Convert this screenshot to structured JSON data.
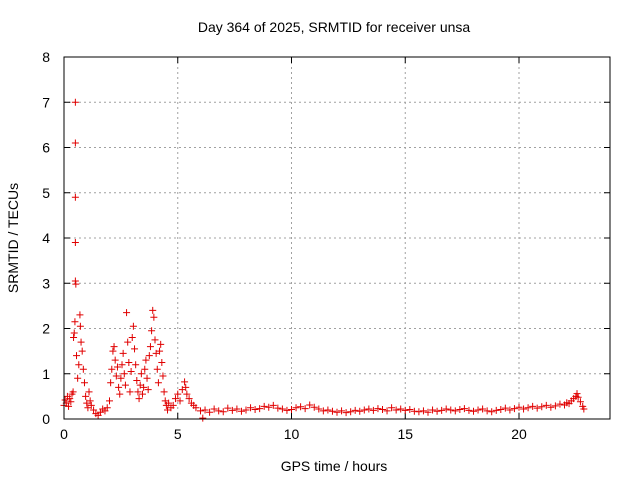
{
  "chart_data": {
    "type": "scatter",
    "title": "Day 364 of 2025, SRMTID for receiver unsa",
    "xlabel": "GPS time / hours",
    "ylabel": "SRMTID / TECUs",
    "xlim": [
      0,
      24
    ],
    "ylim": [
      0,
      8
    ],
    "xticks": [
      0,
      5,
      10,
      15,
      20
    ],
    "yticks": [
      0,
      1,
      2,
      3,
      4,
      5,
      6,
      7,
      8
    ],
    "grid": true,
    "marker": "+",
    "color": "#e00000",
    "series": [
      {
        "name": "SRMTID",
        "points": [
          [
            0.0,
            0.3
          ],
          [
            0.05,
            0.42
          ],
          [
            0.1,
            0.35
          ],
          [
            0.15,
            0.5
          ],
          [
            0.2,
            0.28
          ],
          [
            0.25,
            0.45
          ],
          [
            0.3,
            0.38
          ],
          [
            0.35,
            0.55
          ],
          [
            0.4,
            0.6
          ],
          [
            0.42,
            1.8
          ],
          [
            0.45,
            1.9
          ],
          [
            0.48,
            2.15
          ],
          [
            0.5,
            7.0
          ],
          [
            0.5,
            6.1
          ],
          [
            0.5,
            4.9
          ],
          [
            0.5,
            3.9
          ],
          [
            0.5,
            3.05
          ],
          [
            0.52,
            2.98
          ],
          [
            0.55,
            1.4
          ],
          [
            0.6,
            0.9
          ],
          [
            0.65,
            1.2
          ],
          [
            0.7,
            2.3
          ],
          [
            0.72,
            2.05
          ],
          [
            0.75,
            1.7
          ],
          [
            0.8,
            1.5
          ],
          [
            0.85,
            1.1
          ],
          [
            0.9,
            0.8
          ],
          [
            0.95,
            0.5
          ],
          [
            1.0,
            0.35
          ],
          [
            1.05,
            0.25
          ],
          [
            1.1,
            0.6
          ],
          [
            1.15,
            0.4
          ],
          [
            1.2,
            0.3
          ],
          [
            1.3,
            0.2
          ],
          [
            1.4,
            0.12
          ],
          [
            1.5,
            0.08
          ],
          [
            1.6,
            0.15
          ],
          [
            1.7,
            0.22
          ],
          [
            1.8,
            0.18
          ],
          [
            1.9,
            0.25
          ],
          [
            2.0,
            0.4
          ],
          [
            2.05,
            0.8
          ],
          [
            2.1,
            1.1
          ],
          [
            2.15,
            1.5
          ],
          [
            2.2,
            1.6
          ],
          [
            2.25,
            1.3
          ],
          [
            2.3,
            0.95
          ],
          [
            2.35,
            1.15
          ],
          [
            2.4,
            0.7
          ],
          [
            2.45,
            0.55
          ],
          [
            2.5,
            0.9
          ],
          [
            2.55,
            1.2
          ],
          [
            2.6,
            1.45
          ],
          [
            2.65,
            1.0
          ],
          [
            2.7,
            0.75
          ],
          [
            2.75,
            2.35
          ],
          [
            2.8,
            1.7
          ],
          [
            2.85,
            1.25
          ],
          [
            2.9,
            0.6
          ],
          [
            2.95,
            1.05
          ],
          [
            3.0,
            1.8
          ],
          [
            3.05,
            2.05
          ],
          [
            3.1,
            1.55
          ],
          [
            3.15,
            1.2
          ],
          [
            3.2,
            0.85
          ],
          [
            3.25,
            0.6
          ],
          [
            3.3,
            0.45
          ],
          [
            3.35,
            0.75
          ],
          [
            3.4,
            1.0
          ],
          [
            3.45,
            0.55
          ],
          [
            3.5,
            0.7
          ],
          [
            3.55,
            1.1
          ],
          [
            3.6,
            1.3
          ],
          [
            3.65,
            0.9
          ],
          [
            3.7,
            0.65
          ],
          [
            3.75,
            1.4
          ],
          [
            3.8,
            1.6
          ],
          [
            3.85,
            1.95
          ],
          [
            3.9,
            2.4
          ],
          [
            3.95,
            2.25
          ],
          [
            4.0,
            1.75
          ],
          [
            4.05,
            1.45
          ],
          [
            4.1,
            1.1
          ],
          [
            4.15,
            0.8
          ],
          [
            4.2,
            1.5
          ],
          [
            4.25,
            1.65
          ],
          [
            4.3,
            1.25
          ],
          [
            4.35,
            0.95
          ],
          [
            4.4,
            0.6
          ],
          [
            4.45,
            0.4
          ],
          [
            4.5,
            0.3
          ],
          [
            4.55,
            0.2
          ],
          [
            4.6,
            0.35
          ],
          [
            4.7,
            0.25
          ],
          [
            4.8,
            0.3
          ],
          [
            4.9,
            0.45
          ],
          [
            5.0,
            0.55
          ],
          [
            5.1,
            0.4
          ],
          [
            5.2,
            0.65
          ],
          [
            5.3,
            0.82
          ],
          [
            5.35,
            0.7
          ],
          [
            5.4,
            0.55
          ],
          [
            5.5,
            0.45
          ],
          [
            5.6,
            0.35
          ],
          [
            5.7,
            0.3
          ],
          [
            5.8,
            0.25
          ],
          [
            6.0,
            0.18
          ],
          [
            6.1,
            0.02
          ],
          [
            6.2,
            0.2
          ],
          [
            6.4,
            0.15
          ],
          [
            6.6,
            0.22
          ],
          [
            6.8,
            0.18
          ],
          [
            7.0,
            0.16
          ],
          [
            7.2,
            0.24
          ],
          [
            7.4,
            0.19
          ],
          [
            7.6,
            0.22
          ],
          [
            7.8,
            0.17
          ],
          [
            8.0,
            0.2
          ],
          [
            8.2,
            0.25
          ],
          [
            8.4,
            0.21
          ],
          [
            8.6,
            0.23
          ],
          [
            8.8,
            0.28
          ],
          [
            9.0,
            0.26
          ],
          [
            9.2,
            0.3
          ],
          [
            9.4,
            0.24
          ],
          [
            9.6,
            0.22
          ],
          [
            9.8,
            0.19
          ],
          [
            10.0,
            0.21
          ],
          [
            10.2,
            0.25
          ],
          [
            10.4,
            0.27
          ],
          [
            10.6,
            0.23
          ],
          [
            10.8,
            0.31
          ],
          [
            11.0,
            0.26
          ],
          [
            11.2,
            0.22
          ],
          [
            11.4,
            0.18
          ],
          [
            11.6,
            0.2
          ],
          [
            11.8,
            0.17
          ],
          [
            12.0,
            0.15
          ],
          [
            12.2,
            0.18
          ],
          [
            12.4,
            0.14
          ],
          [
            12.6,
            0.16
          ],
          [
            12.8,
            0.19
          ],
          [
            13.0,
            0.17
          ],
          [
            13.2,
            0.2
          ],
          [
            13.4,
            0.22
          ],
          [
            13.6,
            0.19
          ],
          [
            13.8,
            0.23
          ],
          [
            14.0,
            0.21
          ],
          [
            14.2,
            0.18
          ],
          [
            14.4,
            0.25
          ],
          [
            14.6,
            0.2
          ],
          [
            14.8,
            0.22
          ],
          [
            15.0,
            0.19
          ],
          [
            15.2,
            0.21
          ],
          [
            15.4,
            0.17
          ],
          [
            15.6,
            0.16
          ],
          [
            15.8,
            0.18
          ],
          [
            16.0,
            0.15
          ],
          [
            16.2,
            0.2
          ],
          [
            16.4,
            0.17
          ],
          [
            16.6,
            0.19
          ],
          [
            16.8,
            0.22
          ],
          [
            17.0,
            0.2
          ],
          [
            17.2,
            0.18
          ],
          [
            17.4,
            0.21
          ],
          [
            17.6,
            0.23
          ],
          [
            17.8,
            0.19
          ],
          [
            18.0,
            0.17
          ],
          [
            18.2,
            0.2
          ],
          [
            18.4,
            0.22
          ],
          [
            18.6,
            0.18
          ],
          [
            18.8,
            0.16
          ],
          [
            19.0,
            0.19
          ],
          [
            19.2,
            0.21
          ],
          [
            19.4,
            0.24
          ],
          [
            19.6,
            0.2
          ],
          [
            19.8,
            0.23
          ],
          [
            20.0,
            0.26
          ],
          [
            20.2,
            0.22
          ],
          [
            20.4,
            0.25
          ],
          [
            20.6,
            0.28
          ],
          [
            20.8,
            0.24
          ],
          [
            21.0,
            0.27
          ],
          [
            21.2,
            0.3
          ],
          [
            21.4,
            0.26
          ],
          [
            21.6,
            0.29
          ],
          [
            21.8,
            0.33
          ],
          [
            22.0,
            0.31
          ],
          [
            22.1,
            0.36
          ],
          [
            22.2,
            0.34
          ],
          [
            22.3,
            0.4
          ],
          [
            22.4,
            0.45
          ],
          [
            22.5,
            0.5
          ],
          [
            22.55,
            0.56
          ],
          [
            22.6,
            0.48
          ],
          [
            22.7,
            0.38
          ],
          [
            22.8,
            0.28
          ],
          [
            22.85,
            0.22
          ]
        ]
      }
    ]
  }
}
